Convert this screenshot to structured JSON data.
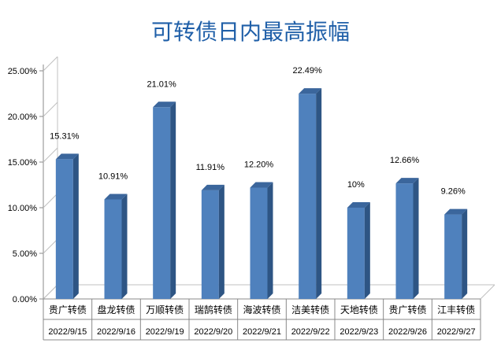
{
  "chart_data": {
    "type": "bar",
    "title": "可转债日内最高振幅",
    "categories": [
      "贵广转债",
      "盘龙转债",
      "万顺转债",
      "瑞鹄转债",
      "海波转债",
      "洁美转债",
      "天地转债",
      "贵广转债",
      "江丰转债"
    ],
    "dates": [
      "2022/9/15",
      "2022/9/16",
      "2022/9/19",
      "2022/9/20",
      "2022/9/21",
      "2022/9/22",
      "2022/9/23",
      "2022/9/26",
      "2022/9/27"
    ],
    "values": [
      15.31,
      10.91,
      21.01,
      11.91,
      12.2,
      22.49,
      10.0,
      12.66,
      9.26
    ],
    "data_labels": [
      "15.31%",
      "10.91%",
      "21.01%",
      "11.91%",
      "12.20%",
      "22.49%",
      "10%",
      "12.66%",
      "9.26%"
    ],
    "y_ticks": [
      "0.00%",
      "5.00%",
      "10.00%",
      "15.00%",
      "20.00%",
      "25.00%"
    ],
    "ylim": [
      0,
      25
    ],
    "grid": false,
    "legend": "none",
    "colors": {
      "bar_front": "#4f81bd",
      "bar_side": "#2e5584",
      "bar_top": "#3b669c",
      "title": "#1f5fa8",
      "wall": "#c0c0c0"
    }
  }
}
